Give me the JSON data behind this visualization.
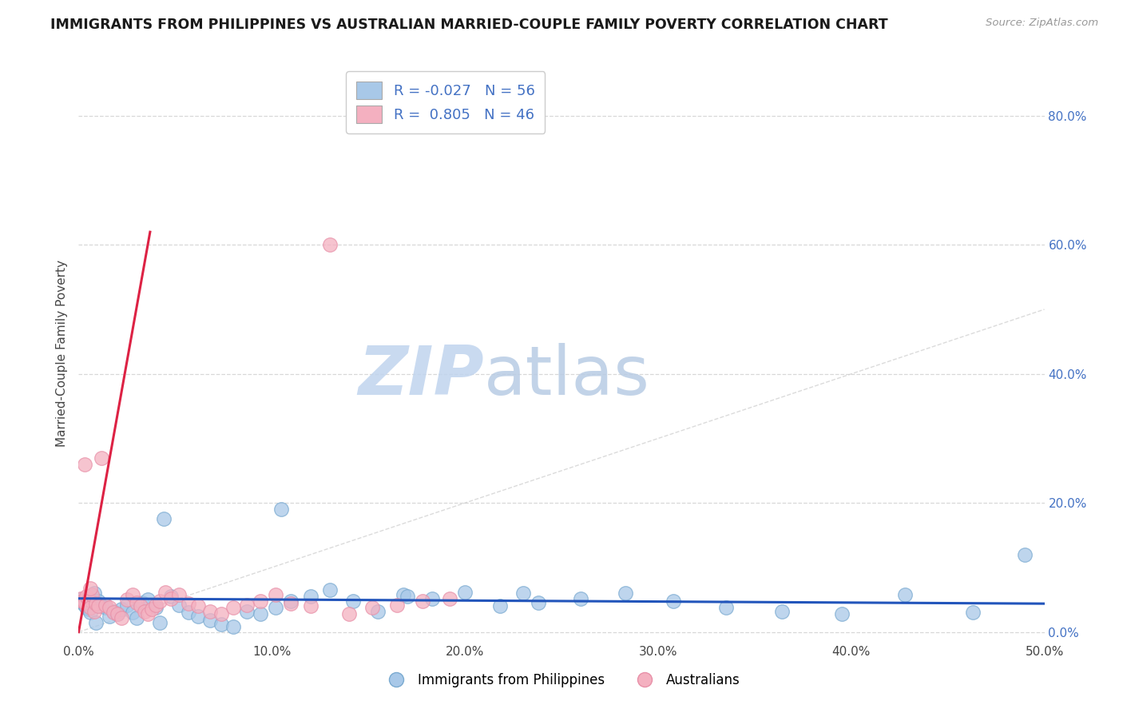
{
  "title": "IMMIGRANTS FROM PHILIPPINES VS AUSTRALIAN MARRIED-COUPLE FAMILY POVERTY CORRELATION CHART",
  "source": "Source: ZipAtlas.com",
  "ylabel": "Married-Couple Family Poverty",
  "watermark_zip": "ZIP",
  "watermark_atlas": "atlas",
  "xmin": 0.0,
  "xmax": 0.5,
  "ymin": -0.015,
  "ymax": 0.88,
  "yticks": [
    0.0,
    0.2,
    0.4,
    0.6,
    0.8
  ],
  "ytick_labels": [
    "0.0%",
    "20.0%",
    "40.0%",
    "60.0%",
    "80.0%"
  ],
  "xticks": [
    0.0,
    0.1,
    0.2,
    0.3,
    0.4,
    0.5
  ],
  "xtick_labels": [
    "0.0%",
    "10.0%",
    "20.0%",
    "30.0%",
    "40.0%",
    "50.0%"
  ],
  "blue_color": "#a8c8e8",
  "pink_color": "#f4b0c0",
  "blue_edge": "#7aaad0",
  "pink_edge": "#e890a8",
  "trend_blue": "#2255bb",
  "trend_pink": "#dd2244",
  "diag_color": "#cccccc",
  "legend_R_blue": "-0.027",
  "legend_N_blue": "56",
  "legend_R_pink": "0.805",
  "legend_N_pink": "46",
  "legend_label_blue": "Immigrants from Philippines",
  "legend_label_pink": "Australians",
  "blue_scatter_x": [
    0.001,
    0.002,
    0.003,
    0.004,
    0.005,
    0.006,
    0.007,
    0.008,
    0.009,
    0.01,
    0.012,
    0.014,
    0.016,
    0.018,
    0.02,
    0.022,
    0.025,
    0.028,
    0.03,
    0.033,
    0.036,
    0.04,
    0.044,
    0.048,
    0.052,
    0.057,
    0.062,
    0.068,
    0.074,
    0.08,
    0.087,
    0.094,
    0.102,
    0.11,
    0.12,
    0.13,
    0.142,
    0.155,
    0.168,
    0.183,
    0.2,
    0.218,
    0.238,
    0.26,
    0.283,
    0.308,
    0.335,
    0.364,
    0.395,
    0.428,
    0.463,
    0.49,
    0.042,
    0.17,
    0.23,
    0.105
  ],
  "blue_scatter_y": [
    0.05,
    0.045,
    0.042,
    0.038,
    0.035,
    0.03,
    0.055,
    0.06,
    0.015,
    0.048,
    0.04,
    0.038,
    0.025,
    0.032,
    0.028,
    0.035,
    0.042,
    0.03,
    0.022,
    0.045,
    0.05,
    0.038,
    0.175,
    0.055,
    0.042,
    0.03,
    0.025,
    0.018,
    0.012,
    0.008,
    0.032,
    0.028,
    0.038,
    0.048,
    0.055,
    0.065,
    0.048,
    0.032,
    0.058,
    0.052,
    0.062,
    0.04,
    0.045,
    0.052,
    0.06,
    0.048,
    0.038,
    0.032,
    0.028,
    0.058,
    0.03,
    0.12,
    0.015,
    0.055,
    0.06,
    0.19
  ],
  "pink_scatter_x": [
    0.001,
    0.002,
    0.003,
    0.004,
    0.005,
    0.006,
    0.007,
    0.008,
    0.009,
    0.01,
    0.012,
    0.014,
    0.016,
    0.018,
    0.02,
    0.022,
    0.025,
    0.028,
    0.03,
    0.032,
    0.034,
    0.036,
    0.038,
    0.04,
    0.042,
    0.045,
    0.048,
    0.052,
    0.057,
    0.062,
    0.068,
    0.074,
    0.08,
    0.087,
    0.094,
    0.102,
    0.11,
    0.12,
    0.13,
    0.14,
    0.152,
    0.165,
    0.178,
    0.192,
    0.003,
    0.006
  ],
  "pink_scatter_y": [
    0.052,
    0.048,
    0.045,
    0.055,
    0.05,
    0.038,
    0.058,
    0.032,
    0.044,
    0.04,
    0.27,
    0.042,
    0.038,
    0.03,
    0.028,
    0.022,
    0.05,
    0.058,
    0.045,
    0.04,
    0.032,
    0.028,
    0.035,
    0.042,
    0.048,
    0.062,
    0.052,
    0.058,
    0.044,
    0.04,
    0.032,
    0.028,
    0.038,
    0.042,
    0.048,
    0.058,
    0.044,
    0.04,
    0.6,
    0.028,
    0.038,
    0.042,
    0.048,
    0.052,
    0.26,
    0.068
  ],
  "blue_trend_x": [
    0.0,
    0.5
  ],
  "blue_trend_y": [
    0.052,
    0.044
  ],
  "pink_trend_x": [
    0.0,
    0.037
  ],
  "pink_trend_y": [
    0.0,
    0.62
  ],
  "diag_line_x": [
    0.0,
    0.5
  ],
  "diag_line_y": [
    0.0,
    0.5
  ],
  "background_color": "#ffffff",
  "grid_color": "#d8d8d8",
  "title_fontsize": 12.5,
  "axis_fontsize": 11,
  "tick_fontsize": 11,
  "watermark_fontsize_zip": 62,
  "watermark_fontsize_atlas": 62,
  "watermark_color_zip": "#c0d4ee",
  "watermark_color_atlas": "#b8cce4"
}
